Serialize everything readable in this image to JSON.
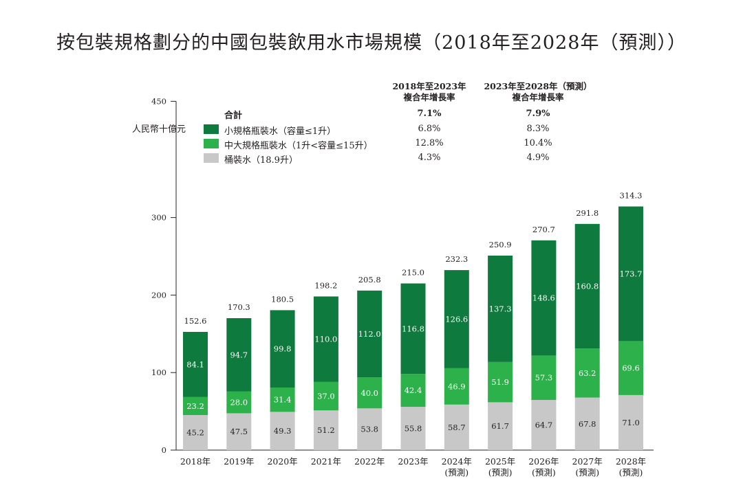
{
  "title": "按包裝規格劃分的中國包裝飲用水市場規模（2018年至2028年（預測））",
  "unit_label": "人民幣十億元",
  "cagr_table": {
    "headers": [
      {
        "line1": "2018年至2023年",
        "line2": "複合年增長率"
      },
      {
        "line1": "2023年至2028年（預測）",
        "line2": "複合年增長率"
      }
    ],
    "rows": [
      {
        "label": "合計",
        "values": [
          "7.1%",
          "7.9%"
        ]
      },
      {
        "label": "小規格瓶裝水（容量≤1升）",
        "values": [
          "6.8%",
          "8.3%"
        ]
      },
      {
        "label": "中大規格瓶裝水（1升<容量≤15升）",
        "values": [
          "12.8%",
          "10.4%"
        ]
      },
      {
        "label": "桶裝水（18.9升）",
        "values": [
          "4.3%",
          "4.9%"
        ]
      }
    ]
  },
  "colors": {
    "small": "#0f7a3d",
    "medium": "#2db14a",
    "barrel": "#c8c8c8",
    "axis": "#231f20"
  },
  "chart_data": {
    "type": "bar",
    "stacked": true,
    "categories": [
      "2018年",
      "2019年",
      "2020年",
      "2021年",
      "2022年",
      "2023年",
      "2024年\n(預測)",
      "2025年\n(預測)",
      "2026年\n(預測)",
      "2027年\n(預測)",
      "2028年\n(預測)"
    ],
    "series": [
      {
        "name": "桶裝水（18.9升）",
        "color_key": "barrel",
        "values": [
          45.2,
          47.5,
          49.3,
          51.2,
          53.8,
          55.8,
          58.7,
          61.7,
          64.7,
          67.8,
          71.0
        ]
      },
      {
        "name": "中大規格瓶裝水（1升<容量≤15升）",
        "color_key": "medium",
        "values": [
          23.2,
          28.0,
          31.4,
          37.0,
          40.0,
          42.4,
          46.9,
          51.9,
          57.3,
          63.2,
          69.6
        ]
      },
      {
        "name": "小規格瓶裝水（容量≤1升）",
        "color_key": "small",
        "values": [
          84.1,
          94.7,
          99.8,
          110.0,
          112.0,
          116.8,
          126.6,
          137.3,
          148.6,
          160.8,
          173.7
        ]
      }
    ],
    "totals": [
      152.6,
      170.3,
      180.5,
      198.2,
      205.8,
      215.0,
      232.3,
      250.9,
      270.7,
      291.8,
      314.3
    ],
    "value_labels": [
      [
        "45.2",
        "47.5",
        "49.3",
        "51.2",
        "53.8",
        "55.8",
        "58.7",
        "61.7",
        "64.7",
        "67.8",
        "71.0"
      ],
      [
        "23.2",
        "28.0",
        "31.4",
        "37.0",
        "40.0",
        "42.4",
        "46.9",
        "51.9",
        "57.3",
        "63.2",
        "69.6"
      ],
      [
        "84.1",
        "94.7",
        "99.8",
        "110.0",
        "112.0",
        "116.8",
        "126.6",
        "137.3",
        "148.6",
        "160.8",
        "173.7"
      ]
    ],
    "total_labels": [
      "152.6",
      "170.3",
      "180.5",
      "198.2",
      "205.8",
      "215.0",
      "232.3",
      "250.9",
      "270.7",
      "291.8",
      "314.3"
    ],
    "yticks": [
      0,
      100,
      200,
      300,
      450
    ],
    "ylim": [
      0,
      450
    ],
    "grid": false,
    "legend_position": "top-left"
  }
}
